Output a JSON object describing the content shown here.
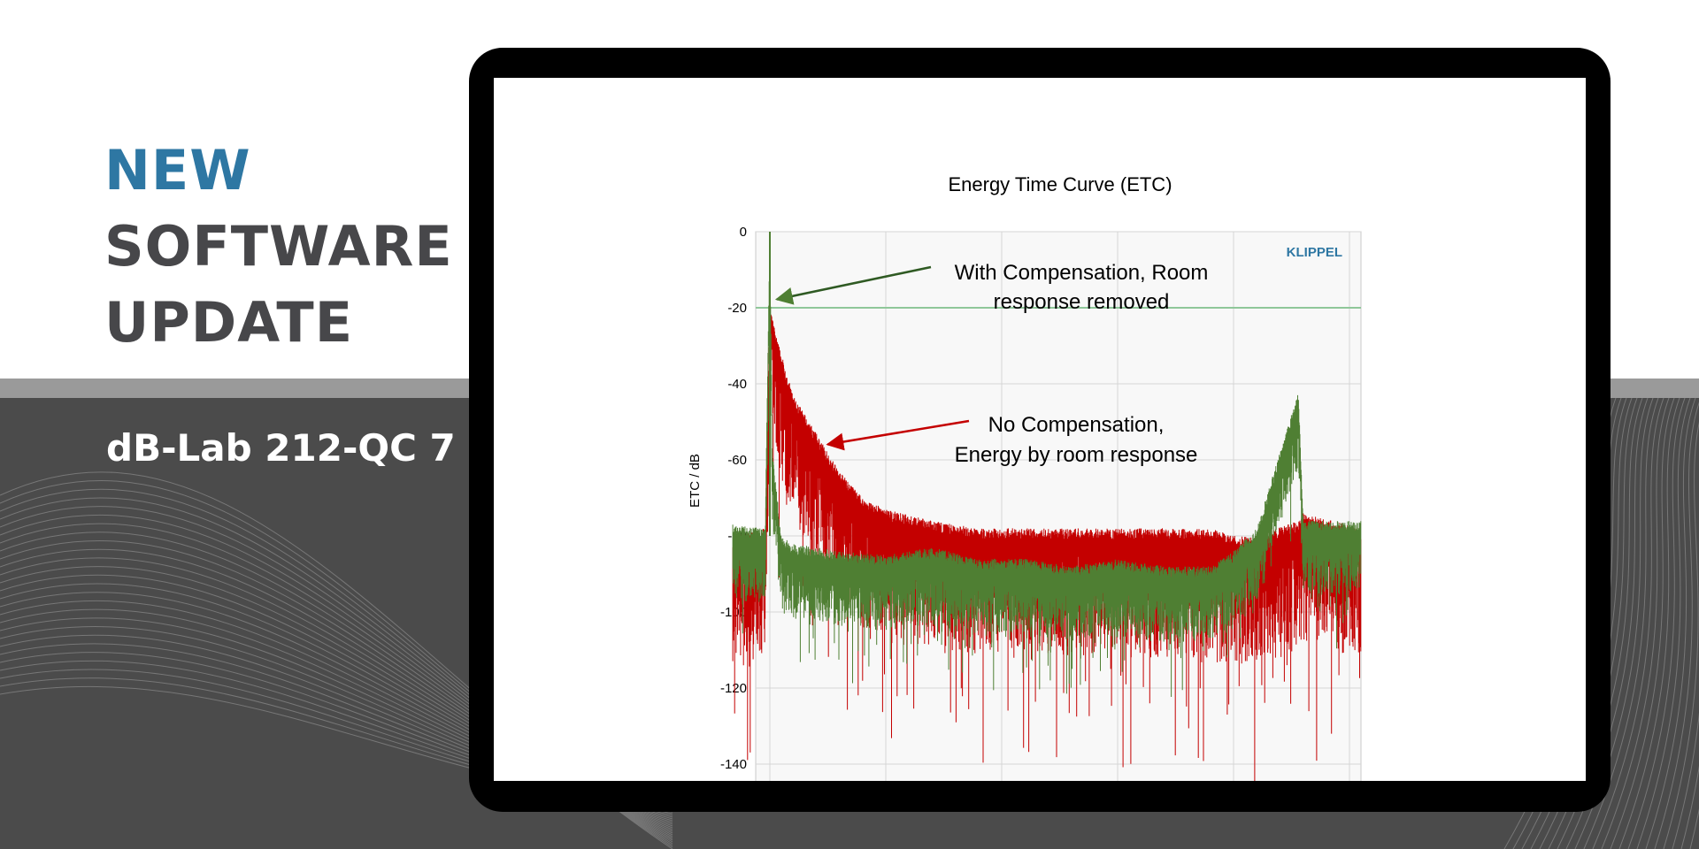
{
  "headline": {
    "line1": "NEW",
    "line2": "SOFTWARE",
    "line3": "UPDATE"
  },
  "product": "dB-Lab 212-QC 7",
  "colors": {
    "accent": "#2e77a3",
    "compensated": "#4f7f33",
    "uncompensated": "#c40000",
    "threshold": "#8fc79a"
  },
  "chart_data": {
    "type": "line",
    "title": "Energy Time Curve (ETC)",
    "ylabel": "ETC / dB",
    "xlabel": "",
    "watermark": "KLIPPEL",
    "xlim": [
      -220,
      2600
    ],
    "ylim": [
      -145,
      0
    ],
    "xticks": [
      0,
      500,
      1000,
      1500,
      2000,
      2500
    ],
    "yticks": [
      0,
      -20,
      -40,
      -60,
      -80,
      -100,
      -120,
      -140
    ],
    "grid": true,
    "threshold_line": -20,
    "series": [
      {
        "key": "uncompensated",
        "color": "#c40000",
        "envelope": [
          [
            -160,
            -82
          ],
          [
            -20,
            -80
          ],
          [
            0,
            -22
          ],
          [
            30,
            -30
          ],
          [
            100,
            -45
          ],
          [
            200,
            -55
          ],
          [
            300,
            -65
          ],
          [
            400,
            -72
          ],
          [
            500,
            -75
          ],
          [
            700,
            -78
          ],
          [
            900,
            -80
          ],
          [
            1100,
            -80
          ],
          [
            1300,
            -80
          ],
          [
            1500,
            -80
          ],
          [
            1700,
            -80
          ],
          [
            1900,
            -80
          ],
          [
            2000,
            -82
          ],
          [
            2100,
            -82
          ],
          [
            2280,
            -78
          ],
          [
            2300,
            -76
          ],
          [
            2550,
            -80
          ]
        ]
      },
      {
        "key": "compensated",
        "color": "#4f7f33",
        "envelope": [
          [
            -160,
            -79
          ],
          [
            -20,
            -80
          ],
          [
            0,
            0
          ],
          [
            10,
            -60
          ],
          [
            50,
            -82
          ],
          [
            100,
            -84
          ],
          [
            300,
            -86
          ],
          [
            500,
            -87
          ],
          [
            700,
            -85
          ],
          [
            900,
            -88
          ],
          [
            1100,
            -88
          ],
          [
            1300,
            -90
          ],
          [
            1500,
            -88
          ],
          [
            1700,
            -90
          ],
          [
            1900,
            -90
          ],
          [
            2000,
            -86
          ],
          [
            2100,
            -80
          ],
          [
            2280,
            -44
          ],
          [
            2300,
            -78
          ],
          [
            2550,
            -78
          ]
        ]
      }
    ],
    "annotations": [
      {
        "line1": "With Compensation, Room",
        "line2": "response removed",
        "target": "compensated",
        "arrow_to": [
          30,
          -15
        ]
      },
      {
        "line1": "No Compensation,",
        "line2": "Energy by room response",
        "target": "uncompensated",
        "arrow_to": [
          280,
          -55
        ]
      }
    ]
  }
}
